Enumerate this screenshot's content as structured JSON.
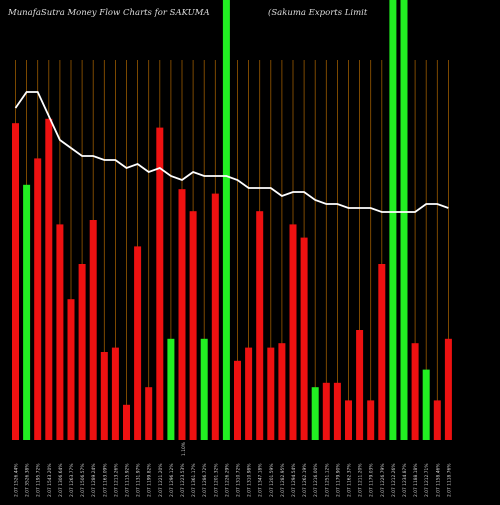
{
  "header": {
    "left": "MunafaSutra  Money Flow  Charts for SAKUMA",
    "right": "(Sakuma  Exports Limit"
  },
  "chart_data": {
    "type": "bar",
    "title": "MunafaSutra  Money Flow  Charts for SAKUMA",
    "subtitle": "(Sakuma  Exports Limit",
    "colors": {
      "background": "#000000",
      "up": "#22ee22",
      "down": "#ee1111",
      "gridline": "#9a5a00",
      "price_line": "#ffffff",
      "tick_text": "#cfcfcf"
    },
    "series": [
      {
        "values": [
          0.72,
          0.58,
          0.64,
          0.73,
          0.49,
          0.32,
          0.4,
          0.5,
          0.2,
          0.21,
          0.08,
          0.44,
          0.12,
          0.71,
          0.23,
          0.57,
          0.52,
          0.23,
          0.56,
          1.0,
          0.18,
          0.21,
          0.52,
          0.21,
          0.22,
          0.49,
          0.46,
          0.12,
          0.13,
          0.13,
          0.09,
          0.25,
          0.09,
          0.4,
          1.0,
          1.0,
          0.22,
          0.16,
          0.09,
          0.23
        ]
      }
    ],
    "bar_colors": [
      "red",
      "green",
      "red",
      "red",
      "red",
      "red",
      "red",
      "red",
      "red",
      "red",
      "red",
      "red",
      "red",
      "red",
      "green",
      "red",
      "red",
      "green",
      "red",
      "green",
      "red",
      "red",
      "red",
      "red",
      "red",
      "red",
      "red",
      "green",
      "red",
      "red",
      "red",
      "red",
      "red",
      "red",
      "green",
      "green",
      "red",
      "green",
      "red",
      "red"
    ],
    "price_line": [
      0.88,
      0.92,
      0.92,
      0.86,
      0.8,
      0.78,
      0.76,
      0.76,
      0.75,
      0.75,
      0.73,
      0.74,
      0.72,
      0.73,
      0.71,
      0.7,
      0.72,
      0.71,
      0.71,
      0.71,
      0.7,
      0.68,
      0.68,
      0.68,
      0.66,
      0.67,
      0.67,
      0.65,
      0.64,
      0.64,
      0.63,
      0.63,
      0.63,
      0.62,
      0.62,
      0.62,
      0.62,
      0.64,
      0.64,
      0.63
    ],
    "x_tick_labels": [
      "2.07 1526.44%",
      "2.07 3526.38%",
      "2.07 1195.72%",
      "2.07 1543.20%",
      "2.07 1306.64%",
      "2.07 1263.77%",
      "2.07 1506.57%",
      "2.07 1289.24%",
      "2.07 1163.09%",
      "2.07 1213.26%",
      "2.07 1115.92%",
      "2.07 1131.97%",
      "2.07 1199.82%",
      "2.07 1221.20%",
      "2.07 1296.12%",
      "2.07 1223.53%",
      "2.07 1361.17%",
      "2.07 1286.72%",
      "2.07 1201.32%",
      "2.07 1226.29%",
      "2.07 1310.72%",
      "2.07 1310.98%",
      "2.07 1347.18%",
      "2.07 1201.59%",
      "2.07 1282.95%",
      "2.07 1294.54%",
      "2.07 1262.19%",
      "2.07 1216.00%",
      "2.07 1251.12%",
      "2.07 1179.90%",
      "2.07 1162.37%",
      "2.07 1211.20%",
      "2.07 1179.03%",
      "2.07 1226.79%",
      "2.07 1212.26%",
      "2.07 1234.87%",
      "2.07 1188.18%",
      "2.07 1212.71%",
      "2.07 1158.46%",
      "2.07 1118.76%"
    ],
    "extra_label": "1.10%"
  }
}
